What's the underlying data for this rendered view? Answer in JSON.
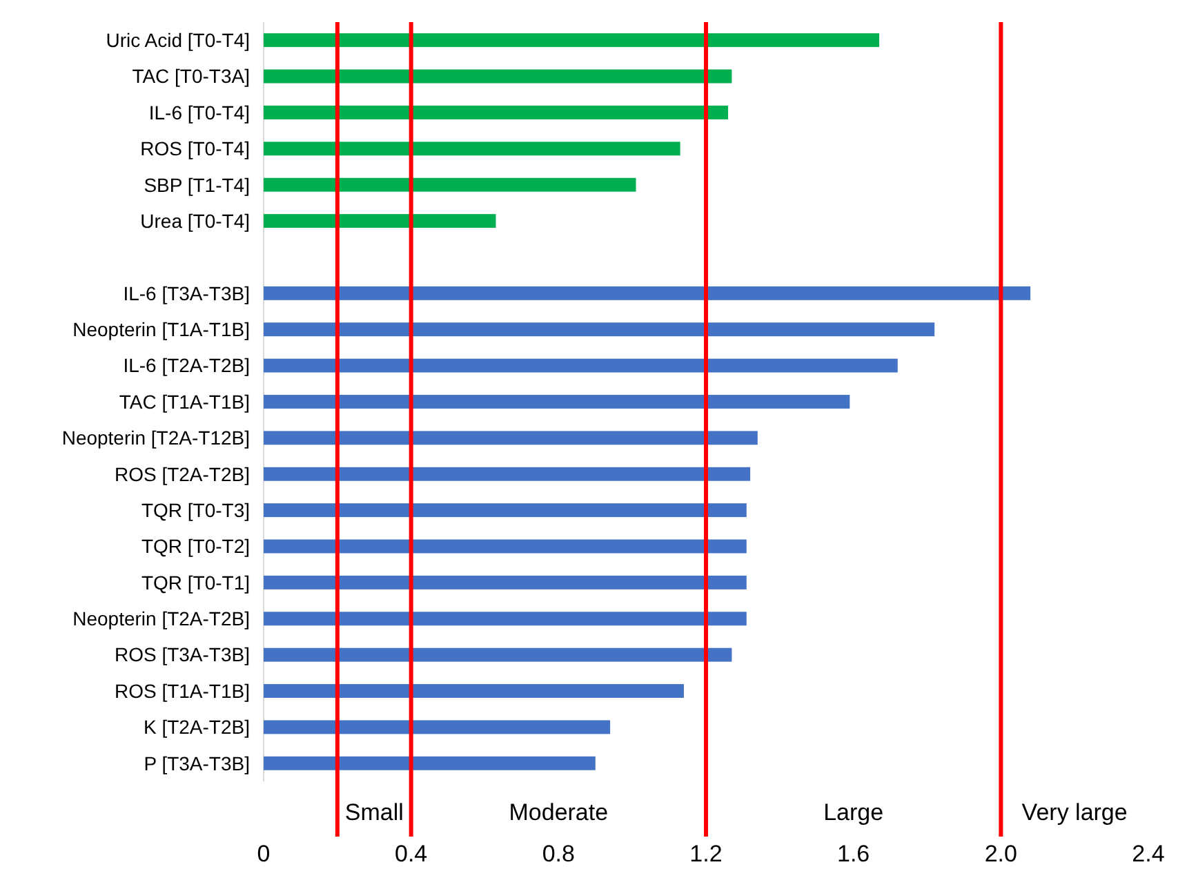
{
  "chart_data": {
    "type": "bar",
    "orientation": "horizontal",
    "categories": [
      "Uric Acid [T0-T4]",
      "TAC [T0-T3A]",
      "IL-6 [T0-T4]",
      "ROS [T0-T4]",
      "SBP [T1-T4]",
      "Urea [T0-T4]",
      null,
      "IL-6 [T3A-T3B]",
      "Neopterin [T1A-T1B]",
      "IL-6 [T2A-T2B]",
      "TAC [T1A-T1B]",
      "Neopterin [T2A-T12B]",
      "ROS [T2A-T2B]",
      "TQR [T0-T3]",
      "TQR [T0-T2]",
      "TQR [T0-T1]",
      "Neopterin [T2A-T2B]",
      "ROS [T3A-T3B]",
      "ROS [T1A-T1B]",
      "K [T2A-T2B]",
      "P [T3A-T3B]"
    ],
    "values": [
      1.67,
      1.27,
      1.26,
      1.13,
      1.01,
      0.63,
      null,
      2.08,
      1.82,
      1.72,
      1.59,
      1.34,
      1.32,
      1.31,
      1.31,
      1.31,
      1.31,
      1.27,
      1.14,
      0.94,
      0.9
    ],
    "colors": [
      "#00b050",
      "#00b050",
      "#00b050",
      "#00b050",
      "#00b050",
      "#00b050",
      null,
      "#4472c4",
      "#4472c4",
      "#4472c4",
      "#4472c4",
      "#4472c4",
      "#4472c4",
      "#4472c4",
      "#4472c4",
      "#4472c4",
      "#4472c4",
      "#4472c4",
      "#4472c4",
      "#4472c4",
      "#4472c4"
    ],
    "xlim": [
      0,
      2.4
    ],
    "xticks": [
      0,
      0.4,
      0.8,
      1.2,
      1.6,
      {
        "value": 2,
        "label": "2.0"
      },
      2.4
    ],
    "ref_lines": [
      {
        "axis": "x",
        "value": 0.2,
        "color": "#ff0000"
      },
      {
        "axis": "x",
        "value": 0.4,
        "color": "#ff0000"
      },
      {
        "axis": "x",
        "value": 1.2,
        "color": "#ff0000"
      },
      {
        "axis": "x",
        "value": 2.0,
        "color": "#ff0000"
      }
    ],
    "annotations": [
      "Small",
      "Moderate",
      "Large",
      "Very large"
    ]
  }
}
